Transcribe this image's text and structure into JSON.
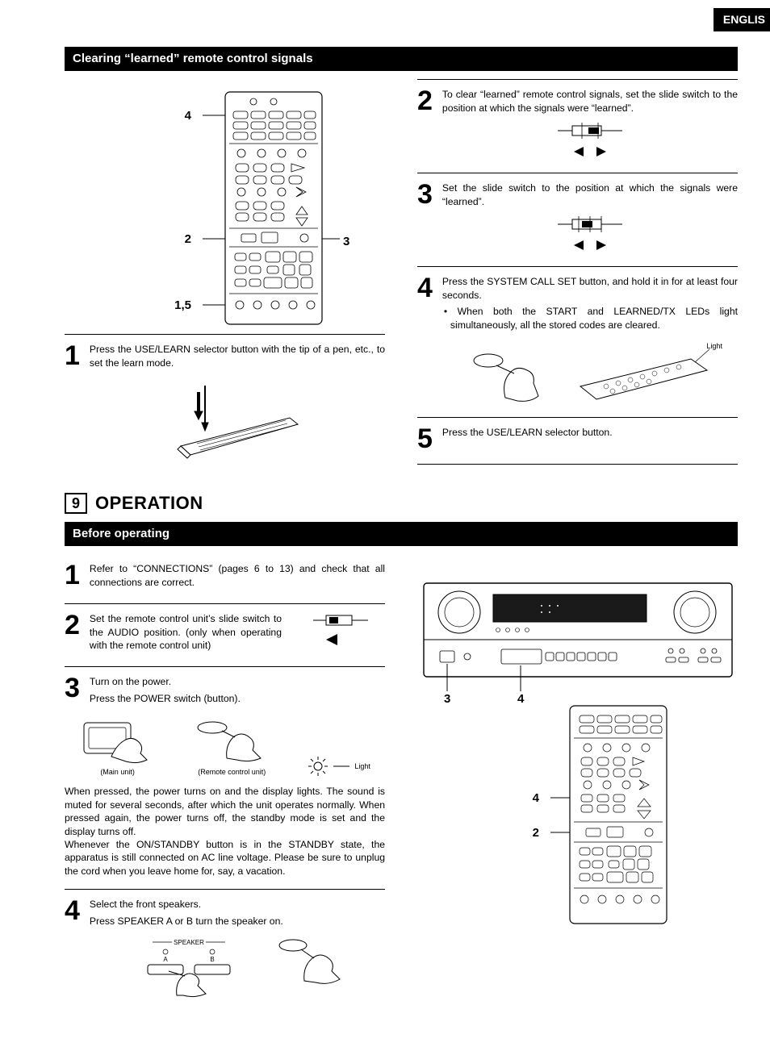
{
  "lang_tab": "ENGLIS",
  "section_bar_clearing": "Clearing “learned” remote control signals",
  "remote_callouts": {
    "c4": "4",
    "c2": "2",
    "c15": "1,5",
    "c3": "3"
  },
  "left_steps": [
    {
      "num": "1",
      "text": "Press the USE/LEARN selector button with the tip of a pen, etc., to set the learn mode."
    }
  ],
  "right_steps": [
    {
      "num": "2",
      "text": "To clear “learned” remote control signals, set the slide switch to the position at which the signals were “learned”."
    },
    {
      "num": "3",
      "text": "Set the slide switch to the position at which the signals were “learned”."
    },
    {
      "num": "4",
      "text": "Press the SYSTEM CALL SET button, and hold it in for at least four seconds.",
      "bullet": "When both the START and LEARNED/TX LEDs light simultaneously, all the stored codes are cleared.",
      "light_label": "Light"
    },
    {
      "num": "5",
      "text": "Press the USE/LEARN selector button."
    }
  ],
  "section9_num": "9",
  "section9_title": "OPERATION",
  "section_bar_before": "Before operating",
  "before_steps": [
    {
      "num": "1",
      "text": "Refer to “CONNECTIONS” (pages 6 to 13) and check that all connections are correct."
    },
    {
      "num": "2",
      "text": "Set the remote control unit’s slide switch to the AUDIO position. (only when operating with the remote control unit)"
    },
    {
      "num": "3",
      "text_a": "Turn on the power.",
      "text_b": "Press the POWER switch (button).",
      "caption_main": "(Main unit)",
      "caption_remote": "(Remote control unit)",
      "light": "Light",
      "para": "When pressed, the power turns on and the display lights. The sound is muted for several seconds, after which the unit operates normally. When pressed again, the power turns off, the standby mode is set and the display turns off.\nWhenever the ON/STANDBY button is in the STANDBY state, the apparatus is still connected on AC line voltage. Please be sure to unplug the cord when you leave home for, say, a vacation."
    },
    {
      "num": "4",
      "text_a": "Select the front speakers.",
      "text_b": "Press SPEAKER A or B turn the speaker on.",
      "speaker_label": "SPEAKER",
      "a": "A",
      "b": "B"
    }
  ],
  "receiver_callouts": {
    "c3": "3",
    "c4a": "4",
    "c4b": "4",
    "c2": "2"
  },
  "colors": {
    "bg": "#ffffff",
    "text": "#000000",
    "bar_bg": "#000000",
    "bar_text": "#ffffff"
  }
}
